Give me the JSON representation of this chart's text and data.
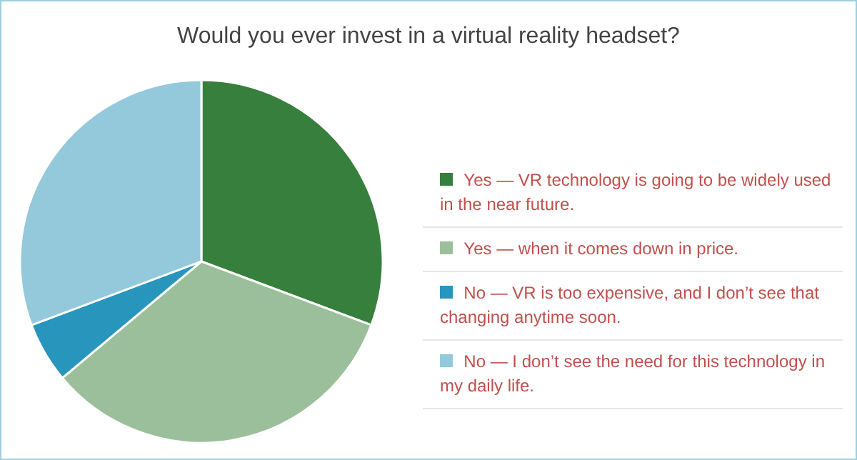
{
  "chart_data": {
    "type": "pie",
    "title": "Would you ever invest in a virtual reality headset?",
    "categories": [
      "Yes — VR technology is going to be widely used in the near future.",
      "Yes — when it comes down in price.",
      "No — VR is too expensive, and I don’t see that changing anytime soon.",
      "No — I don’t see the need for this technology in my daily life."
    ],
    "values": [
      30.7,
      33.2,
      5.4,
      30.7
    ],
    "colors": [
      "#367f3c",
      "#9bbf9b",
      "#2896bc",
      "#94c9dc"
    ],
    "legend": "right"
  }
}
